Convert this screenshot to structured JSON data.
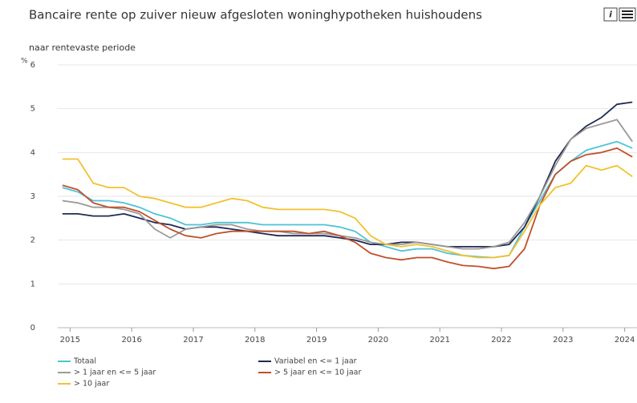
{
  "chart_data": {
    "type": "line",
    "title": "Bancaire rente op zuiver nieuw afgesloten woninghypotheken huishoudens",
    "subtitle": "naar rentevaste periode",
    "y_unit": "%",
    "info_button": "i",
    "x": [
      2014.875,
      2015.125,
      2015.375,
      2015.625,
      2015.875,
      2016.125,
      2016.375,
      2016.625,
      2016.875,
      2017.125,
      2017.375,
      2017.625,
      2017.875,
      2018.125,
      2018.375,
      2018.625,
      2018.875,
      2019.125,
      2019.375,
      2019.625,
      2019.875,
      2020.125,
      2020.375,
      2020.625,
      2020.875,
      2021.125,
      2021.375,
      2021.625,
      2021.875,
      2022.125,
      2022.375,
      2022.625,
      2022.875,
      2023.125,
      2023.375,
      2023.625,
      2023.875,
      2024.125
    ],
    "xlim": [
      2014.8,
      2024.2
    ],
    "xticks": [
      2015,
      2016,
      2017,
      2018,
      2019,
      2020,
      2021,
      2022,
      2023,
      2024
    ],
    "ylim": [
      0,
      6
    ],
    "yticks": [
      0,
      1,
      2,
      3,
      4,
      5,
      6
    ],
    "grid": true,
    "series": [
      {
        "name": "Totaal",
        "color": "#4fc3d9",
        "values": [
          3.2,
          3.1,
          2.9,
          2.9,
          2.85,
          2.75,
          2.6,
          2.5,
          2.35,
          2.35,
          2.4,
          2.4,
          2.4,
          2.35,
          2.35,
          2.35,
          2.35,
          2.35,
          2.3,
          2.2,
          1.95,
          1.85,
          1.75,
          1.8,
          1.8,
          1.7,
          1.65,
          1.62,
          1.6,
          1.65,
          2.3,
          2.9,
          3.5,
          3.8,
          4.05,
          4.15,
          4.25,
          4.1
        ]
      },
      {
        "name": "Variabel en <= 1 jaar",
        "color": "#1f2a55",
        "values": [
          2.6,
          2.6,
          2.55,
          2.55,
          2.6,
          2.5,
          2.4,
          2.35,
          2.25,
          2.3,
          2.3,
          2.25,
          2.2,
          2.15,
          2.1,
          2.1,
          2.1,
          2.1,
          2.05,
          2.0,
          1.9,
          1.9,
          1.95,
          1.95,
          1.9,
          1.85,
          1.85,
          1.85,
          1.85,
          1.9,
          2.3,
          3.0,
          3.8,
          4.3,
          4.6,
          4.8,
          5.1,
          5.15
        ]
      },
      {
        "name": "> 1 jaar en <= 5 jaar",
        "color": "#9a9a9a",
        "values": [
          2.9,
          2.85,
          2.75,
          2.75,
          2.7,
          2.6,
          2.25,
          2.05,
          2.25,
          2.3,
          2.35,
          2.35,
          2.25,
          2.2,
          2.2,
          2.15,
          2.15,
          2.15,
          2.1,
          2.05,
          1.95,
          1.9,
          1.9,
          1.95,
          1.9,
          1.85,
          1.8,
          1.8,
          1.85,
          1.95,
          2.4,
          3.0,
          3.7,
          4.3,
          4.55,
          4.65,
          4.75,
          4.25
        ]
      },
      {
        "name": "> 5 jaar en <= 10 jaar",
        "color": "#c0502a",
        "values": [
          3.25,
          3.15,
          2.85,
          2.75,
          2.75,
          2.65,
          2.45,
          2.25,
          2.1,
          2.05,
          2.15,
          2.2,
          2.2,
          2.2,
          2.2,
          2.2,
          2.15,
          2.2,
          2.1,
          1.95,
          1.7,
          1.6,
          1.55,
          1.6,
          1.6,
          1.5,
          1.42,
          1.4,
          1.35,
          1.4,
          1.8,
          2.8,
          3.5,
          3.8,
          3.95,
          4.0,
          4.1,
          3.9
        ]
      },
      {
        "name": "> 10 jaar",
        "color": "#f2c12e",
        "values": [
          3.85,
          3.85,
          3.3,
          3.2,
          3.2,
          3.0,
          2.95,
          2.85,
          2.75,
          2.75,
          2.85,
          2.95,
          2.9,
          2.75,
          2.7,
          2.7,
          2.7,
          2.7,
          2.65,
          2.5,
          2.1,
          1.9,
          1.85,
          1.9,
          1.85,
          1.75,
          1.65,
          1.6,
          1.6,
          1.65,
          2.2,
          2.8,
          3.2,
          3.3,
          3.7,
          3.6,
          3.7,
          3.45
        ]
      }
    ]
  }
}
